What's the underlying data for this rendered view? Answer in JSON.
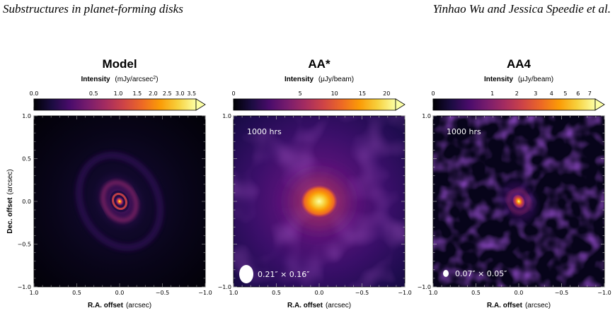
{
  "header": {
    "left": "Substructures in planet-forming disks",
    "right": "Yinhao Wu and Jessica Speedie et al."
  },
  "axes": {
    "xlabel_bold": "R.A. offset",
    "xlabel_unit": "(arcsec)",
    "ylabel_bold": "Dec. offset",
    "ylabel_unit": "(arcsec)",
    "x_ticks": [
      "1.0",
      "0.5",
      "0.0",
      "−0.5",
      "−1.0"
    ],
    "y_ticks": [
      "1.0",
      "0.5",
      "0.0",
      "−0.5",
      "−1.0"
    ]
  },
  "panels": [
    {
      "title": "Model",
      "colorbar_label_bold": "Intensity",
      "colorbar_label_unit": "(mJy/arcsec",
      "colorbar_label_sup": "2",
      "colorbar_label_close": ")",
      "colorbar_ticks": [
        "0.0",
        "0.5",
        "1.0",
        "1.5",
        "2.0",
        "2.5",
        "3.0",
        "3.5"
      ],
      "colorbar_tick_values": [
        0,
        0.5,
        1.0,
        1.5,
        2.0,
        2.5,
        3.0,
        3.5
      ],
      "colorbar_max": 3.7,
      "annotation": "",
      "beam_label": ""
    },
    {
      "title": "AA*",
      "colorbar_label_bold": "Intensity",
      "colorbar_label_unit": "(μJy/beam)",
      "colorbar_label_sup": "",
      "colorbar_label_close": "",
      "colorbar_ticks": [
        "0",
        "5",
        "10",
        "15",
        "20"
      ],
      "colorbar_tick_values": [
        0,
        5,
        10,
        15,
        20
      ],
      "colorbar_max": 22,
      "annotation": "1000 hrs",
      "beam_label": "0.21″ × 0.16″"
    },
    {
      "title": "AA4",
      "colorbar_label_bold": "Intensity",
      "colorbar_label_unit": "(μJy/beam)",
      "colorbar_label_sup": "",
      "colorbar_label_close": "",
      "colorbar_ticks": [
        "0",
        "1",
        "2",
        "3",
        "4",
        "5",
        "6",
        "7"
      ],
      "colorbar_tick_values": [
        0,
        1,
        2,
        3,
        4,
        5,
        6,
        7
      ],
      "colorbar_max": 7.5,
      "annotation": "1000 hrs",
      "beam_label": "0.07″ × 0.05″"
    }
  ],
  "colors": {
    "cmap": [
      "#000004",
      "#1b0c41",
      "#4a0c6b",
      "#781c6d",
      "#a52c60",
      "#cf4446",
      "#ed6925",
      "#fb9b06",
      "#f7d13d",
      "#fcffa4"
    ]
  }
}
